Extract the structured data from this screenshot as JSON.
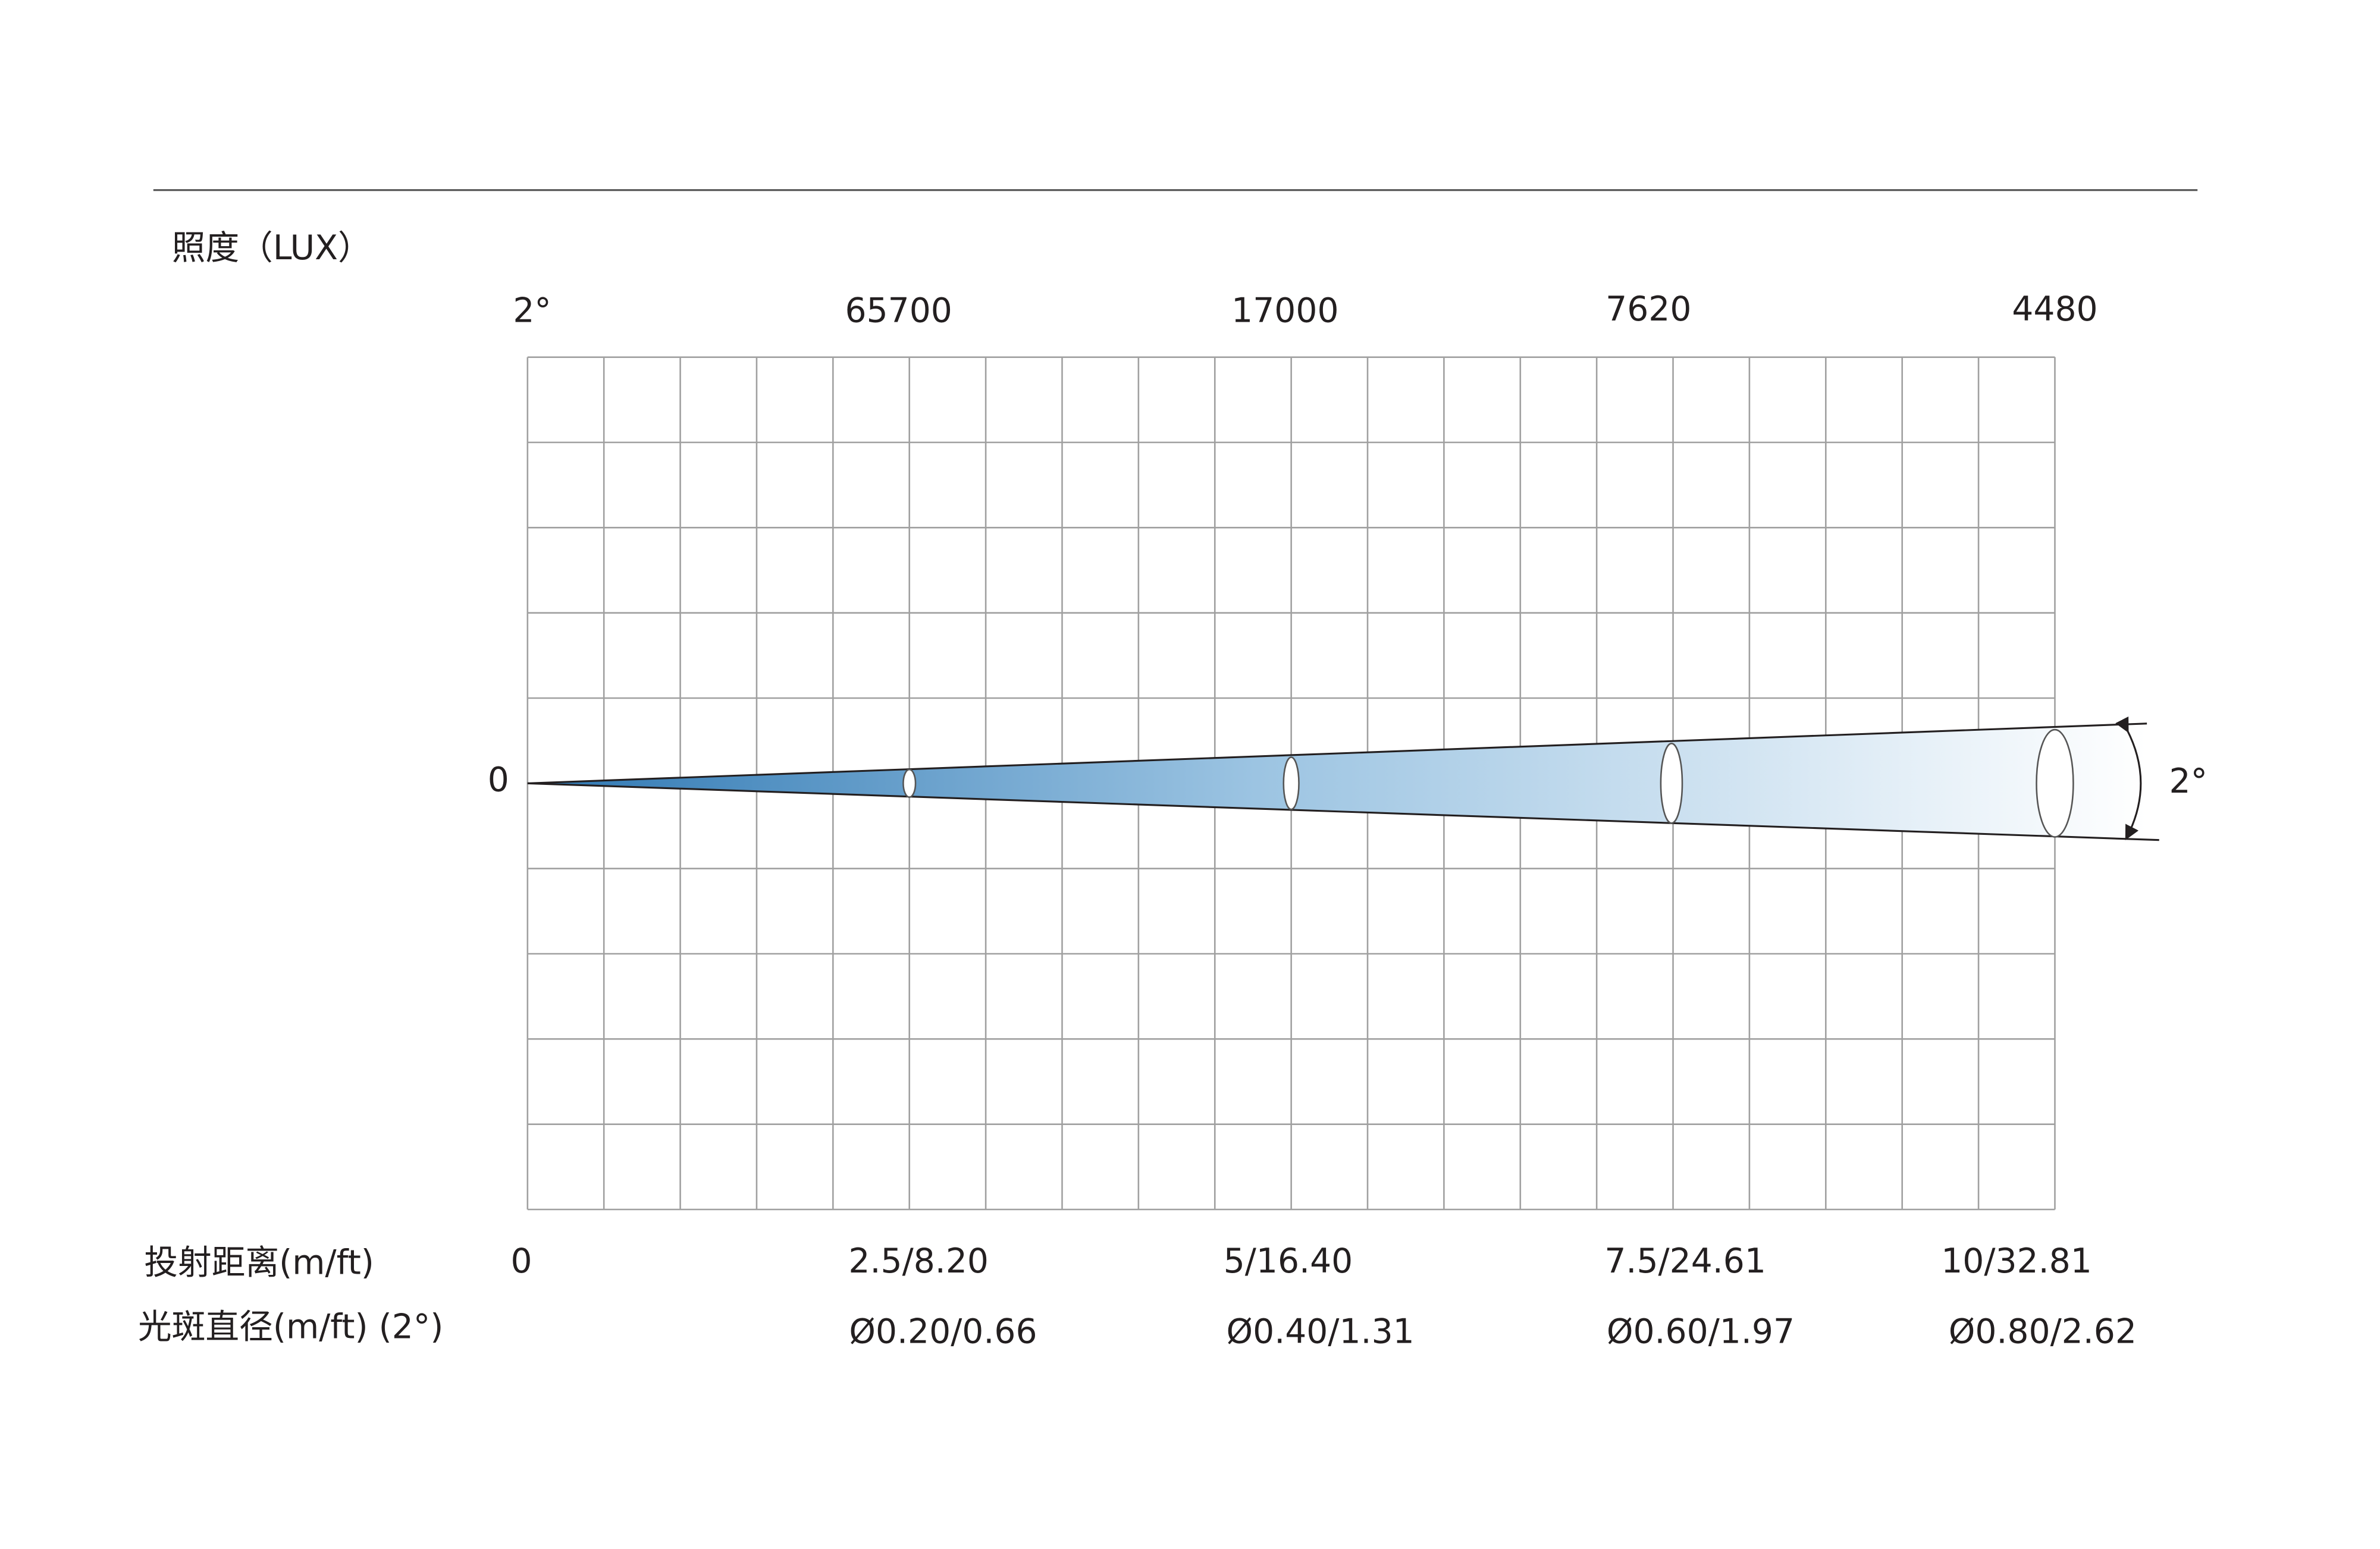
{
  "header": {
    "title": "照度（LUX）"
  },
  "beam_angle_top": "2°",
  "lux": [
    "65700",
    "17000",
    "7620",
    "4480"
  ],
  "origin": "0",
  "beam_angle_right": "2°",
  "distance": {
    "label": "投射距离(m/ft)",
    "values": [
      "0",
      "2.5/8.20",
      "5/16.40",
      "7.5/24.61",
      "10/32.81"
    ]
  },
  "diameter": {
    "label": "光斑直径(m/ft) (2°)",
    "values": [
      "Ø0.20/0.66",
      "Ø0.40/1.31",
      "Ø0.60/1.97",
      "Ø0.80/2.62"
    ]
  }
}
